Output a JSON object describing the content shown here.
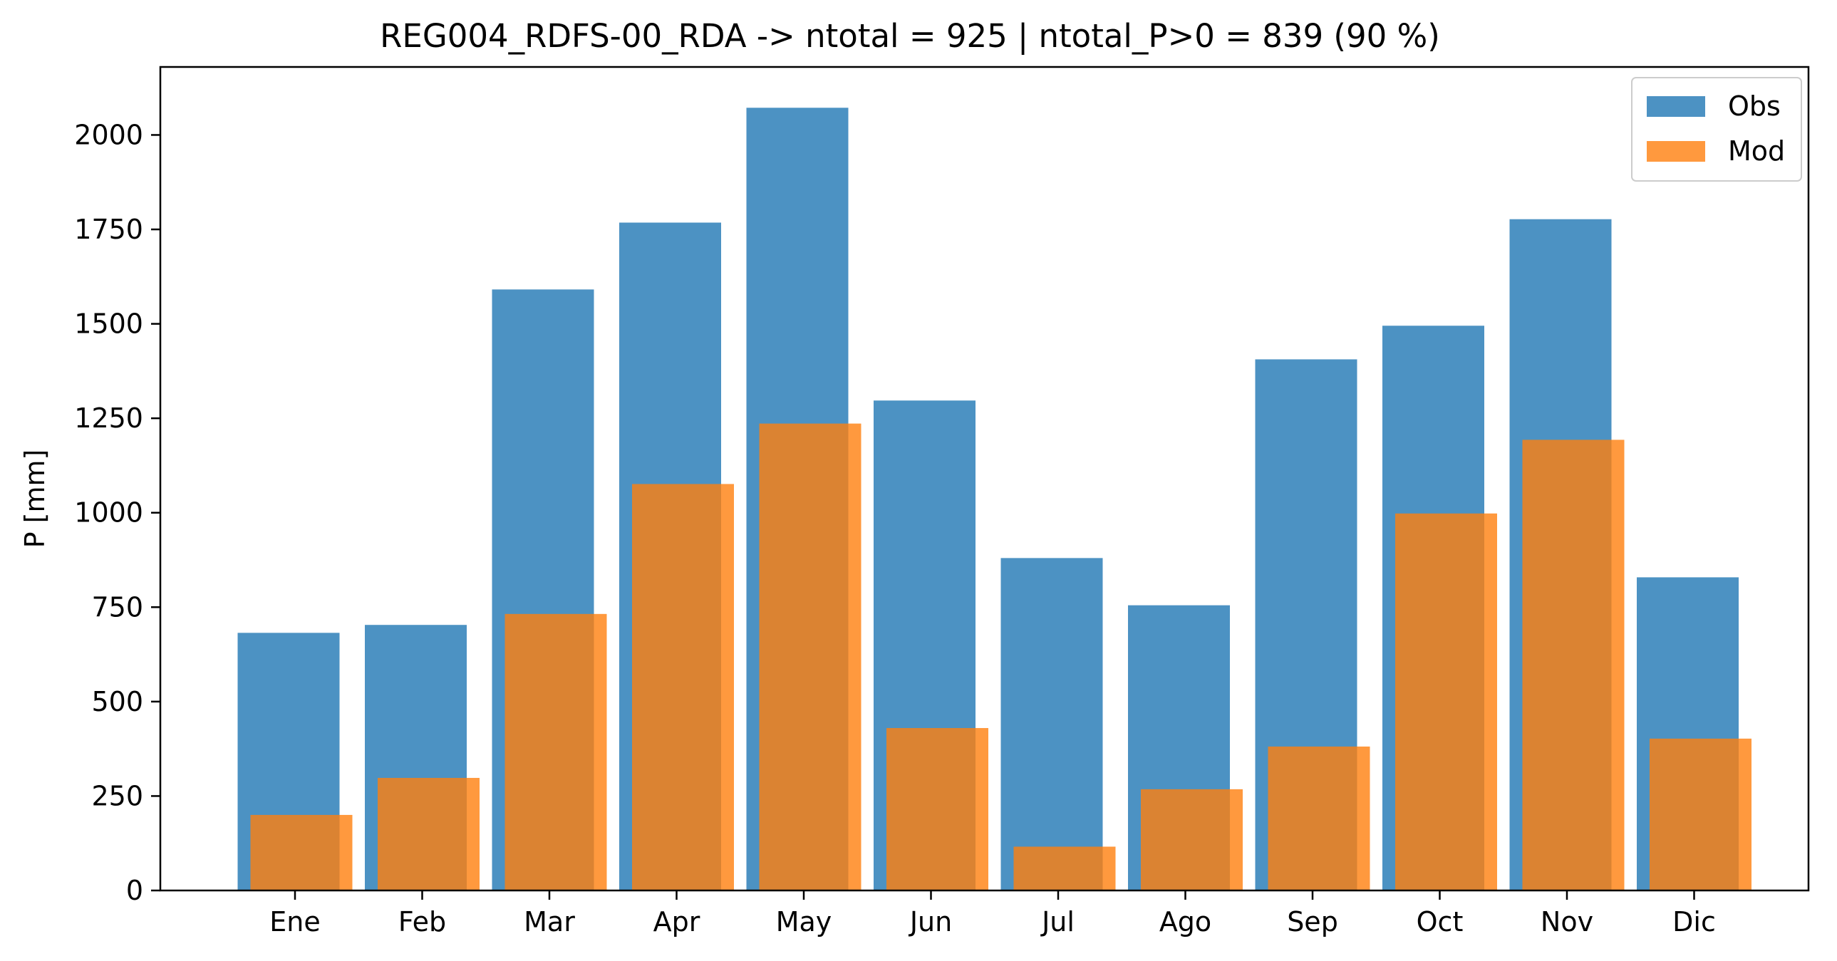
{
  "chart_data": {
    "type": "bar",
    "title": "REG004_RDFS-00_RDA -> ntotal = 925 | ntotal_P>0 = 839 (90 %)",
    "xlabel": "",
    "ylabel": "P [mm]",
    "ylim": [
      0,
      2180
    ],
    "yticks": [
      0,
      250,
      500,
      750,
      1000,
      1250,
      1500,
      1750,
      2000
    ],
    "categories": [
      "Ene",
      "Feb",
      "Mar",
      "Apr",
      "May",
      "Jun",
      "Jul",
      "Ago",
      "Sep",
      "Oct",
      "Nov",
      "Dic"
    ],
    "series": [
      {
        "name": "Obs",
        "color": "#1f77b4",
        "values": [
          682,
          703,
          1591,
          1768,
          2072,
          1297,
          880,
          755,
          1406,
          1495,
          1777,
          829
        ]
      },
      {
        "name": "Mod",
        "color": "#ff7f0e",
        "values": [
          200,
          298,
          732,
          1076,
          1236,
          430,
          116,
          268,
          381,
          998,
          1193,
          402
        ]
      }
    ],
    "grid": false,
    "legend_position": "top-right"
  }
}
